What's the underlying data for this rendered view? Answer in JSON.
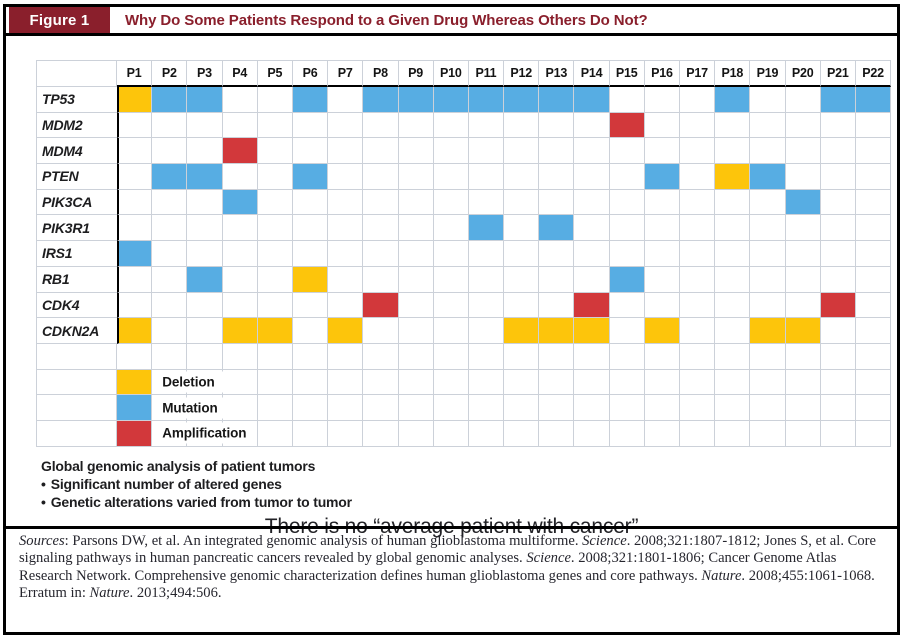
{
  "header": {
    "figure_label": "Figure 1",
    "title": "Why Do Some Patients Respond to a Given Drug Whereas Others Do Not?"
  },
  "colors": {
    "accent_maroon": "#8A1F2C",
    "gridline": "#CCD1D9",
    "deletion": "#FDC50B",
    "mutation": "#57ADE3",
    "amplification": "#D2383B"
  },
  "legend": {
    "items": [
      {
        "code": "D",
        "label": "Deletion"
      },
      {
        "code": "M",
        "label": "Mutation"
      },
      {
        "code": "A",
        "label": "Amplification"
      }
    ]
  },
  "chart_data": {
    "type": "heatmap",
    "title": "Why Do Some Patients Respond to a Given Drug Whereas Others Do Not?",
    "x_categories": [
      "P1",
      "P2",
      "P3",
      "P4",
      "P5",
      "P6",
      "P7",
      "P8",
      "P9",
      "P10",
      "P11",
      "P12",
      "P13",
      "P14",
      "P15",
      "P16",
      "P17",
      "P18",
      "P19",
      "P20",
      "P21",
      "P22"
    ],
    "y_categories": [
      "TP53",
      "MDM2",
      "MDM4",
      "PTEN",
      "PIK3CA",
      "PIK3R1",
      "IRS1",
      "RB1",
      "CDK4",
      "CDKN2A"
    ],
    "value_legend": {
      "D": "Deletion",
      "M": "Mutation",
      "A": "Amplification"
    },
    "colors": {
      "D": "#FDC50B",
      "M": "#57ADE3",
      "A": "#D2383B"
    },
    "legend_position": "bottom-left",
    "matrix": {
      "TP53": [
        "D",
        "M",
        "M",
        "",
        "",
        "M",
        "",
        "M",
        "M",
        "M",
        "M",
        "M",
        "M",
        "M",
        "",
        "",
        "",
        "M",
        "",
        "",
        "M",
        "M"
      ],
      "MDM2": [
        "",
        "",
        "",
        "",
        "",
        "",
        "",
        "",
        "",
        "",
        "",
        "",
        "",
        "",
        "A",
        "",
        "",
        "",
        "",
        "",
        "",
        ""
      ],
      "MDM4": [
        "",
        "",
        "",
        "A",
        "",
        "",
        "",
        "",
        "",
        "",
        "",
        "",
        "",
        "",
        "",
        "",
        "",
        "",
        "",
        "",
        "",
        ""
      ],
      "PTEN": [
        "",
        "M",
        "M",
        "",
        "",
        "M",
        "",
        "",
        "",
        "",
        "",
        "",
        "",
        "",
        "",
        "M",
        "",
        "D",
        "M",
        "",
        "",
        ""
      ],
      "PIK3CA": [
        "",
        "",
        "",
        "M",
        "",
        "",
        "",
        "",
        "",
        "",
        "",
        "",
        "",
        "",
        "",
        "",
        "",
        "",
        "",
        "M",
        "",
        ""
      ],
      "PIK3R1": [
        "",
        "",
        "",
        "",
        "",
        "",
        "",
        "",
        "",
        "",
        "M",
        "",
        "M",
        "",
        "",
        "",
        "",
        "",
        "",
        "",
        "",
        ""
      ],
      "IRS1": [
        "M",
        "",
        "",
        "",
        "",
        "",
        "",
        "",
        "",
        "",
        "",
        "",
        "",
        "",
        "",
        "",
        "",
        "",
        "",
        "",
        "",
        ""
      ],
      "RB1": [
        "",
        "",
        "M",
        "",
        "",
        "D",
        "",
        "",
        "",
        "",
        "",
        "",
        "",
        "",
        "M",
        "",
        "",
        "",
        "",
        "",
        "",
        ""
      ],
      "CDK4": [
        "",
        "",
        "",
        "",
        "",
        "",
        "",
        "A",
        "",
        "",
        "",
        "",
        "",
        "A",
        "",
        "",
        "",
        "",
        "",
        "",
        "A",
        ""
      ],
      "CDKN2A": [
        "D",
        "",
        "",
        "D",
        "D",
        "",
        "D",
        "",
        "",
        "",
        "",
        "D",
        "D",
        "D",
        "",
        "D",
        "",
        "",
        "D",
        "D",
        "",
        ""
      ]
    }
  },
  "notes": {
    "bullet_glyph": "•",
    "lead": "Global genomic analysis of patient tumors",
    "bullets": [
      "Significant number of altered genes",
      "Genetic alterations varied from tumor to tumor"
    ]
  },
  "conclusion": "There is no “average patient with cancer”",
  "sources": {
    "label": "Sources",
    "after_label": ": Parsons DW, et al. An integrated genomic analysis of human glioblastoma multiforme. ",
    "journal1": "Science",
    "part2": ". 2008;321:1807-1812; Jones S, et al. Core signaling pathways in human pancreatic cancers revealed by global genomic analyses. ",
    "journal2": "Science",
    "part3": ". 2008;321:1801-1806; Cancer Genome Atlas Research Network. Comprehensive genomic characterization defines human glioblastoma genes and core pathways. ",
    "journal3": "Nature",
    "part4": ". 2008;455:1061-1068. Erratum in: ",
    "journal4": "Nature",
    "part5": ". 2013;494:506."
  }
}
